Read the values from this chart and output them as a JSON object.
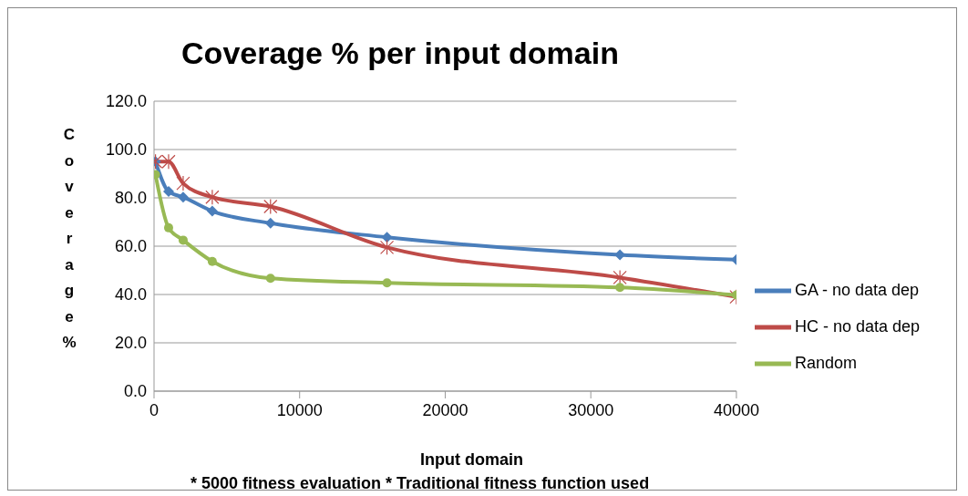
{
  "chart_data": {
    "type": "line",
    "title": "Coverage % per input domain",
    "xlabel": "Input domain",
    "ylabel": "Coverage %",
    "annotations": [
      "* 5000 fitness evaluation  * Traditional fitness function used"
    ],
    "x": [
      100,
      1000,
      2000,
      4000,
      8000,
      16000,
      32000,
      40000
    ],
    "series": [
      {
        "name": "GA - no data dep",
        "color": "#4a7ebb",
        "marker": "diamond",
        "values": [
          95,
          82.6,
          80.3,
          74.5,
          69.5,
          63.7,
          56.4,
          54.4
        ]
      },
      {
        "name": "HC - no data dep",
        "color": "#be4b48",
        "marker": "cross",
        "values": [
          95,
          95,
          86,
          80.3,
          76.4,
          59.5,
          47,
          39
        ]
      },
      {
        "name": "Random",
        "color": "#98b954",
        "marker": "circle",
        "values": [
          89.6,
          67.6,
          62.5,
          53.7,
          46.7,
          44.8,
          42.9,
          39.8
        ]
      }
    ],
    "xlim": [
      0,
      40000
    ],
    "xticks": [
      0,
      10000,
      20000,
      30000,
      40000
    ],
    "ylim": [
      0,
      120
    ],
    "yticks": [
      {
        "value": 0,
        "label": "0.0"
      },
      {
        "value": 20,
        "label": "20.0"
      },
      {
        "value": 40,
        "label": "40.0"
      },
      {
        "value": 60,
        "label": "60.0"
      },
      {
        "value": 80,
        "label": "80.0"
      },
      {
        "value": 100,
        "label": "100.0"
      },
      {
        "value": 120,
        "label": "120.0"
      }
    ],
    "grid": "y",
    "legend": "right"
  }
}
